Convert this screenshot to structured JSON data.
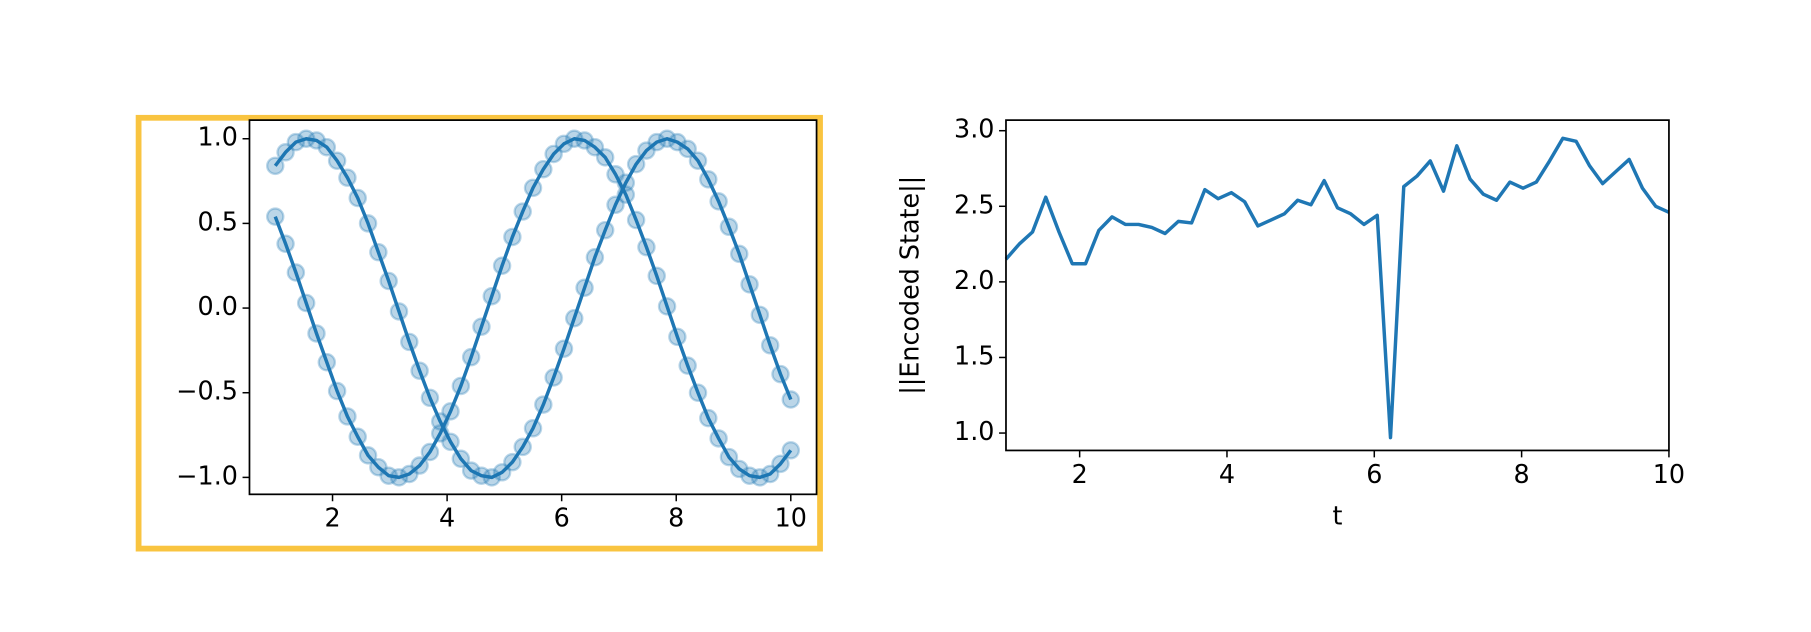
{
  "chart_data": [
    {
      "type": "line",
      "markers": true,
      "x": [
        1,
        1.18,
        1.36,
        1.54,
        1.72,
        1.9,
        2.08,
        2.26,
        2.44,
        2.62,
        2.8,
        2.98,
        3.16,
        3.34,
        3.52,
        3.7,
        3.88,
        4.06,
        4.24,
        4.42,
        4.6,
        4.78,
        4.96,
        5.14,
        5.32,
        5.5,
        5.68,
        5.86,
        6.04,
        6.22,
        6.4,
        6.58,
        6.76,
        6.94,
        7.12,
        7.3,
        7.48,
        7.66,
        7.84,
        8.02,
        8.2,
        8.38,
        8.56,
        8.74,
        8.92,
        9.1,
        9.28,
        9.46,
        9.64,
        9.82,
        10
      ],
      "series": [
        {
          "color": "#1f77b4",
          "values": [
            0.84,
            0.92,
            0.98,
            1.0,
            0.99,
            0.95,
            0.87,
            0.77,
            0.65,
            0.5,
            0.33,
            0.16,
            -0.02,
            -0.2,
            -0.37,
            -0.53,
            -0.67,
            -0.79,
            -0.89,
            -0.96,
            -0.99,
            -1.0,
            -0.97,
            -0.91,
            -0.82,
            -0.71,
            -0.57,
            -0.41,
            -0.24,
            -0.06,
            0.12,
            0.3,
            0.46,
            0.61,
            0.74,
            0.85,
            0.93,
            0.98,
            1.0,
            0.98,
            0.94,
            0.87,
            0.76,
            0.63,
            0.48,
            0.32,
            0.14,
            -0.04,
            -0.22,
            -0.39,
            -0.54
          ]
        },
        {
          "color": "#1f77b4",
          "values": [
            0.54,
            0.38,
            0.21,
            0.03,
            -0.15,
            -0.32,
            -0.49,
            -0.64,
            -0.76,
            -0.87,
            -0.94,
            -0.99,
            -1.0,
            -0.98,
            -0.93,
            -0.85,
            -0.74,
            -0.61,
            -0.46,
            -0.29,
            -0.11,
            0.07,
            0.25,
            0.42,
            0.57,
            0.71,
            0.82,
            0.91,
            0.97,
            1.0,
            0.99,
            0.95,
            0.89,
            0.79,
            0.67,
            0.52,
            0.36,
            0.19,
            0.01,
            -0.17,
            -0.34,
            -0.5,
            -0.65,
            -0.77,
            -0.88,
            -0.95,
            -0.99,
            -1.0,
            -0.98,
            -0.92,
            -0.84
          ]
        }
      ],
      "xlim": [
        0.55,
        10.45
      ],
      "ylim": [
        -1.1,
        1.11
      ],
      "xticks": [
        2,
        4,
        6,
        8,
        10
      ],
      "yticks": [
        {
          "value": -1.0,
          "label": "−1.0"
        },
        {
          "value": -0.5,
          "label": "−0.5"
        },
        {
          "value": 0.0,
          "label": "0.0"
        },
        {
          "value": 0.5,
          "label": "0.5"
        },
        {
          "value": 1.0,
          "label": "1.0"
        }
      ]
    },
    {
      "type": "line",
      "markers": false,
      "x": [
        1,
        1.18,
        1.36,
        1.54,
        1.72,
        1.9,
        2.08,
        2.26,
        2.44,
        2.62,
        2.8,
        2.98,
        3.16,
        3.34,
        3.52,
        3.7,
        3.88,
        4.06,
        4.24,
        4.42,
        4.6,
        4.78,
        4.96,
        5.14,
        5.32,
        5.5,
        5.68,
        5.86,
        6.04,
        6.22,
        6.4,
        6.58,
        6.76,
        6.94,
        7.12,
        7.3,
        7.48,
        7.66,
        7.84,
        8.02,
        8.2,
        8.38,
        8.56,
        8.74,
        8.92,
        9.1,
        9.28,
        9.46,
        9.64,
        9.82,
        10
      ],
      "series": [
        {
          "color": "#1f77b4",
          "values": [
            2.15,
            2.25,
            2.33,
            2.56,
            2.33,
            2.12,
            2.12,
            2.34,
            2.43,
            2.38,
            2.38,
            2.36,
            2.32,
            2.4,
            2.39,
            2.61,
            2.55,
            2.59,
            2.53,
            2.37,
            2.41,
            2.45,
            2.54,
            2.51,
            2.67,
            2.49,
            2.45,
            2.38,
            2.44,
            0.97,
            2.63,
            2.7,
            2.8,
            2.6,
            2.9,
            2.68,
            2.58,
            2.54,
            2.66,
            2.62,
            2.66,
            2.8,
            2.95,
            2.93,
            2.77,
            2.65,
            2.73,
            2.81,
            2.62,
            2.5,
            2.46
          ]
        }
      ],
      "xlabel": "t",
      "ylabel": "||Encoded State||",
      "xlim": [
        1,
        10
      ],
      "ylim": [
        0.885,
        3.07
      ],
      "xticks": [
        2,
        4,
        6,
        8,
        10
      ],
      "yticks": [
        {
          "value": 1.0,
          "label": "1.0"
        },
        {
          "value": 1.5,
          "label": "1.5"
        },
        {
          "value": 2.0,
          "label": "2.0"
        },
        {
          "value": 2.5,
          "label": "2.5"
        },
        {
          "value": 3.0,
          "label": "3.0"
        }
      ]
    }
  ]
}
